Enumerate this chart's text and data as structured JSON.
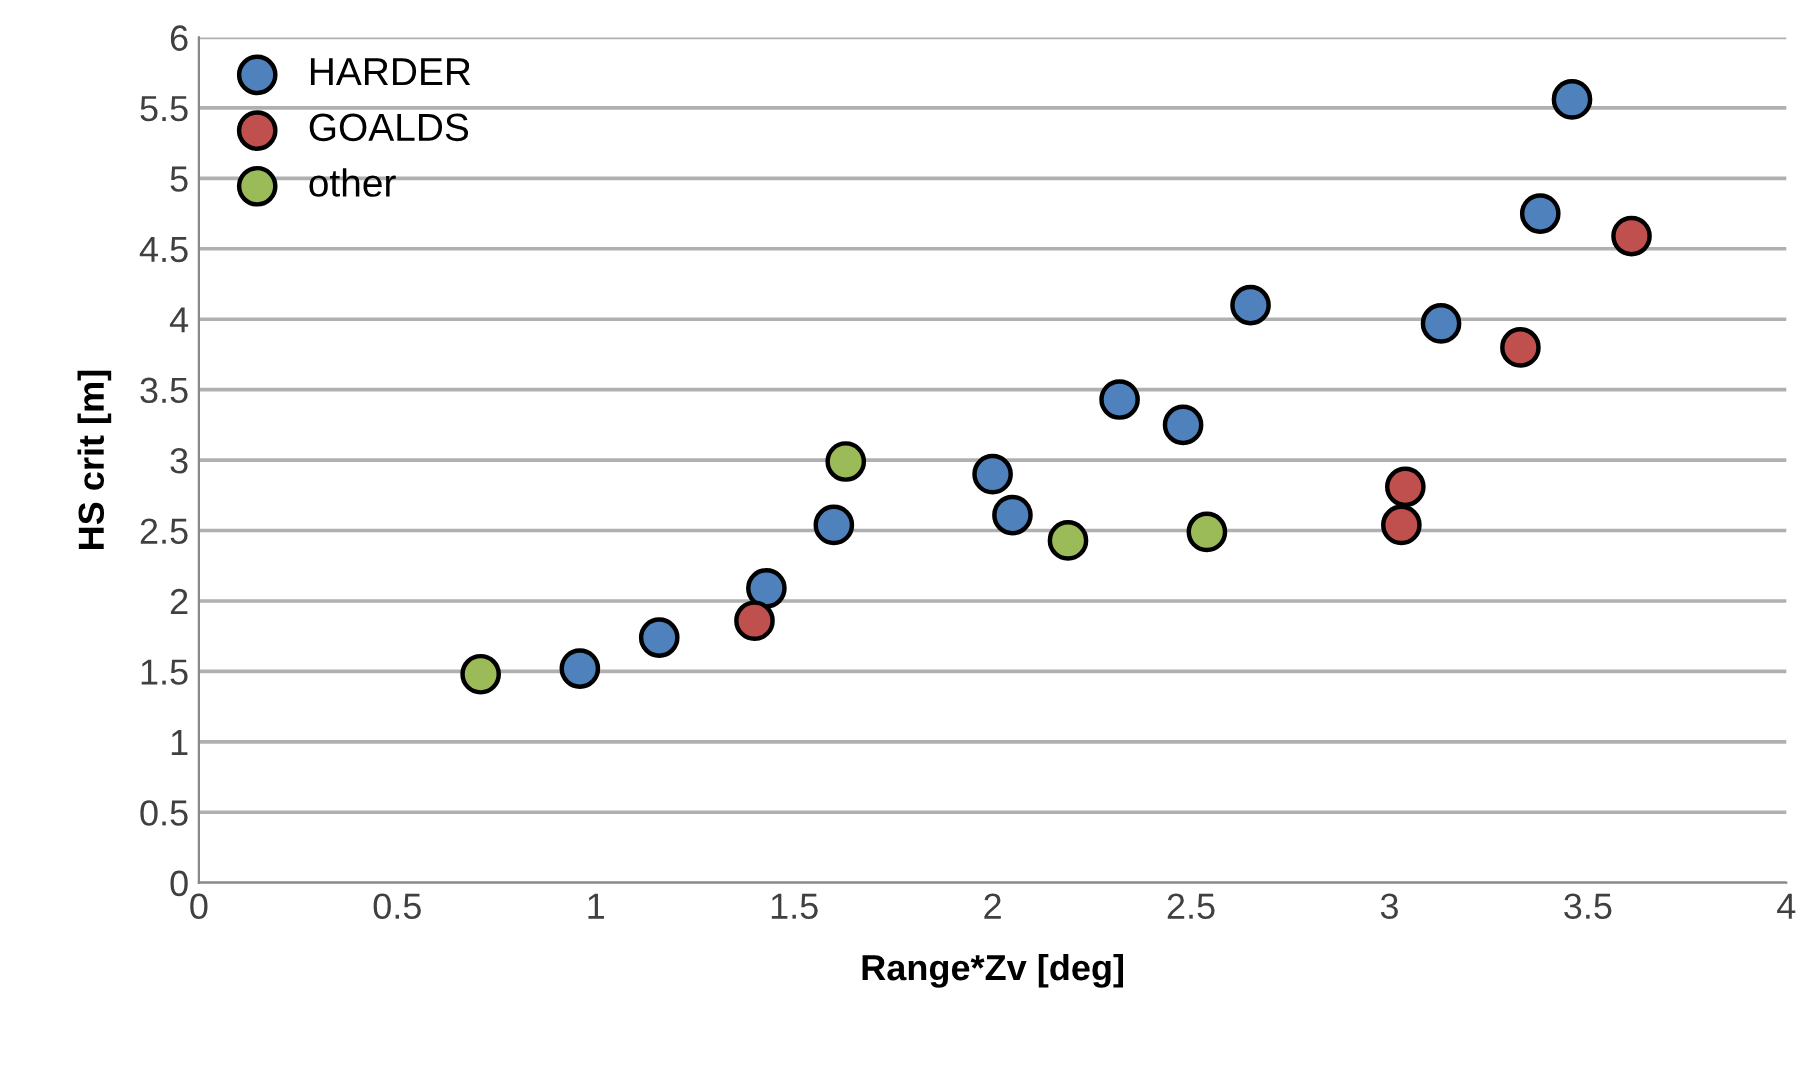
{
  "chart_data": {
    "type": "scatter",
    "xlabel": "Range*Zv [deg]",
    "ylabel": "HS crit [m]",
    "xlim": [
      0,
      4
    ],
    "xticks": [
      0,
      0.5,
      1,
      1.5,
      2,
      2.5,
      3,
      3.5,
      4
    ],
    "ylim": [
      0,
      6
    ],
    "yticks": [
      0,
      0.5,
      1,
      1.5,
      2,
      2.5,
      3,
      3.5,
      4,
      4.5,
      5,
      5.5,
      6
    ],
    "grid": "y",
    "legend": "top left",
    "marker": "circle",
    "series": [
      {
        "name": "HARDER",
        "color": "#4f81bd",
        "x": [
          0.96,
          1.16,
          1.43,
          1.6,
          2.0,
          2.05,
          2.32,
          2.48,
          2.65,
          3.13,
          3.38,
          3.46
        ],
        "values": [
          1.52,
          1.74,
          2.09,
          2.54,
          2.9,
          2.61,
          3.43,
          3.25,
          4.1,
          3.97,
          4.75,
          5.56
        ]
      },
      {
        "name": "GOALDS",
        "color": "#c0504d",
        "x": [
          1.4,
          3.03,
          3.04,
          3.33,
          3.61
        ],
        "values": [
          1.86,
          2.54,
          2.81,
          3.8,
          4.59
        ]
      },
      {
        "name": "other",
        "color": "#9bbb59",
        "x": [
          0.71,
          1.63,
          2.19,
          2.54
        ],
        "values": [
          1.48,
          2.99,
          2.43,
          2.49
        ]
      }
    ]
  }
}
